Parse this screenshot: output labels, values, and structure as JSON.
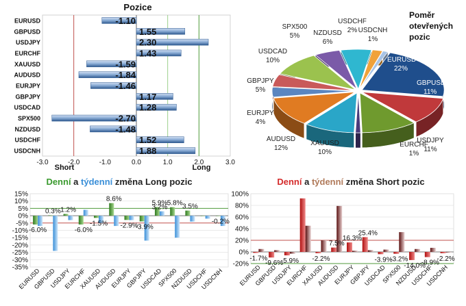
{
  "chart_data": [
    {
      "type": "bar",
      "orientation": "horizontal",
      "title": "Pozice",
      "categories": [
        "EURUSD",
        "GBPUSD",
        "USDJPY",
        "EURCHF",
        "XAUUSD",
        "AUDUSD",
        "EURJPY",
        "GBPJPY",
        "USDCAD",
        "SPX500",
        "NZDUSD",
        "USDCHF",
        "USDCNH"
      ],
      "values": [
        -1.1,
        1.55,
        2.3,
        1.43,
        -1.59,
        -1.84,
        -1.46,
        1.17,
        1.28,
        -2.7,
        -1.48,
        1.52,
        1.88
      ],
      "value_labels": [
        "-1.10",
        "1.55",
        "2.30",
        "1.43",
        "-1.59",
        "-1.84",
        "-1.46",
        "1.17",
        "1.28",
        "-2.70",
        "-1.48",
        "1.52",
        "1.88"
      ],
      "xlim": [
        -3.0,
        3.0
      ],
      "xticks": [
        "-3.0",
        "-2.0",
        "-1.0",
        "0.0",
        "1.0",
        "2.0",
        "3.0"
      ],
      "annotations": {
        "short": "Short",
        "long": "Long"
      },
      "colors": {
        "bar": "#8fb0d8",
        "bar_dark": "#2f5a90",
        "short_line": "#c0504d",
        "long_line": "#4f9a3a"
      }
    },
    {
      "type": "pie",
      "title": "Poměr otevřených pozic",
      "title_lines": [
        "Poměr",
        "otevřených",
        "pozic"
      ],
      "slices": [
        {
          "name": "EURUSD",
          "value": 22,
          "label": "22%",
          "color": "#1f4e8c"
        },
        {
          "name": "GBPUSD",
          "value": 11,
          "label": "11%",
          "color": "#c0393b"
        },
        {
          "name": "USDJPY",
          "value": 11,
          "label": "11%",
          "color": "#6f9a2e"
        },
        {
          "name": "EURCHF",
          "value": 1,
          "label": "1%",
          "color": "#4a3a7a"
        },
        {
          "name": "XAUUSD",
          "value": 10,
          "label": "10%",
          "color": "#2aa6c8"
        },
        {
          "name": "AUDUSD",
          "value": 12,
          "label": "12%",
          "color": "#e07b22"
        },
        {
          "name": "EURJPY",
          "value": 4,
          "label": "4%",
          "color": "#5b86c0"
        },
        {
          "name": "GBPJPY",
          "value": 5,
          "label": "5%",
          "color": "#c95a5a"
        },
        {
          "name": "USDCAD",
          "value": 10,
          "label": "10%",
          "color": "#9bc24e"
        },
        {
          "name": "SPX500",
          "value": 5,
          "label": "5%",
          "color": "#7b5aa8"
        },
        {
          "name": "NZDUSD",
          "value": 6,
          "label": "6%",
          "color": "#2fb7d0"
        },
        {
          "name": "USDCHF",
          "value": 2,
          "label": "2%",
          "color": "#f0a23a"
        },
        {
          "name": "USDCNH",
          "value": 1,
          "label": "1%",
          "color": "#a8c4e6"
        }
      ]
    },
    {
      "type": "bar",
      "title_parts": [
        {
          "text": "Denní",
          "color": "#3a9a2e"
        },
        {
          "text": " a ",
          "color": "#222222"
        },
        {
          "text": "týdenní",
          "color": "#3a8fd8"
        },
        {
          "text": " změna Long pozic",
          "color": "#222222"
        }
      ],
      "categories": [
        "EURUSD",
        "GBPUSD",
        "USDJPY",
        "EURCHF",
        "XAUUSD",
        "AUDUSD",
        "EURJPY",
        "GBPJPY",
        "USDCAD",
        "SPX500",
        "NZDUSD",
        "USDCHF",
        "USDCNH"
      ],
      "series": [
        {
          "values": [
            -6.0,
            0.3,
            1.2,
            -6.0,
            -1.5,
            8.6,
            -2.9,
            -3.9,
            5.9,
            5.8,
            3.5,
            -0.2,
            -0.2
          ],
          "color": "#3f8f2a"
        },
        {
          "values": [
            -7,
            -24,
            -3,
            4,
            -5,
            -7,
            -3,
            -17,
            3,
            -15,
            -4,
            -2,
            -7
          ],
          "color": "#6ab3ee"
        }
      ],
      "value_labels": [
        {
          "i": 0,
          "text": "-6.0%",
          "y": -6.0
        },
        {
          "i": 1,
          "text": "0.3%",
          "y": 0.3
        },
        {
          "i": 2,
          "text": "1.2%",
          "y": 1.2
        },
        {
          "i": 3,
          "text": "-6.0%",
          "y": -6.0
        },
        {
          "i": 4,
          "text": "-1.5%",
          "y": -1.5
        },
        {
          "i": 5,
          "text": "8.6%",
          "y": 8.6
        },
        {
          "i": 6,
          "text": "-2.9%",
          "y": -2.9
        },
        {
          "i": 7,
          "text": "-3.9%",
          "y": -3.9
        },
        {
          "i": 8,
          "text": "5.9%",
          "y": 5.9
        },
        {
          "i": 8,
          "text": "3.2%",
          "y": 3.2
        },
        {
          "i": 9,
          "text": "5.8%",
          "y": 5.8
        },
        {
          "i": 10,
          "text": "3.5%",
          "y": 3.5
        },
        {
          "i": 12,
          "text": "-0.2%",
          "y": -0.2
        }
      ],
      "ylim": [
        -35,
        15
      ],
      "yticks": [
        15,
        10,
        5,
        0,
        -5,
        -10,
        -15,
        -20,
        -25,
        -30,
        -35
      ],
      "ytick_labels": [
        "15%",
        "10%",
        "5%",
        "0%",
        "-5%",
        "-10%",
        "-15%",
        "-20%",
        "-25%",
        "-30%",
        "-35%"
      ]
    },
    {
      "type": "bar",
      "title_parts": [
        {
          "text": "Denní",
          "color": "#d42a2a"
        },
        {
          "text": " a ",
          "color": "#222222"
        },
        {
          "text": "týdenní",
          "color": "#b07a5a"
        },
        {
          "text": " změna Short pozic",
          "color": "#222222"
        }
      ],
      "categories": [
        "EURUSD",
        "GBPUSD",
        "USDJPY",
        "EURCHF",
        "XAUUSD",
        "AUDUSD",
        "EURJPY",
        "GBPJPY",
        "USDCAD",
        "SPX500",
        "NZDUSD",
        "USDCHF",
        "USDCNH"
      ],
      "series": [
        {
          "values": [
            -1.7,
            -9.6,
            -5.9,
            92,
            -2.2,
            7.5,
            16.3,
            25.4,
            -3.9,
            -3.2,
            -14.0,
            -8.9,
            -2.2
          ],
          "color": "#cc1f1f"
        },
        {
          "values": [
            5,
            3,
            -3,
            45,
            20,
            79,
            2,
            3,
            4,
            34,
            5,
            7,
            -1
          ],
          "color": "#7a2020"
        }
      ],
      "value_labels": [
        {
          "i": 0,
          "text": "-1.7%",
          "y": -1.7
        },
        {
          "i": 1,
          "text": "-9.6%",
          "y": -9.6
        },
        {
          "i": 2,
          "text": "-5.9%",
          "y": -5.9
        },
        {
          "i": 4,
          "text": "-2.2%",
          "y": -2.2
        },
        {
          "i": 5,
          "text": "7.5%",
          "y": 7.5
        },
        {
          "i": 6,
          "text": "16.3%",
          "y": 16.3
        },
        {
          "i": 7,
          "text": "25.4%",
          "y": 25.4
        },
        {
          "i": 8,
          "text": "-3.9%",
          "y": -3.9
        },
        {
          "i": 9,
          "text": "-3.2%",
          "y": -3.2
        },
        {
          "i": 10,
          "text": "-14.0%",
          "y": -14.0
        },
        {
          "i": 11,
          "text": "-8.9%",
          "y": -8.9
        },
        {
          "i": 12,
          "text": "-2.2%",
          "y": -2.2
        }
      ],
      "ylim": [
        -20,
        100
      ],
      "yticks": [
        100,
        80,
        60,
        40,
        20,
        0,
        -20
      ],
      "ytick_labels": [
        "100%",
        "80%",
        "60%",
        "40%",
        "20%",
        "0%",
        "-20%"
      ]
    }
  ]
}
